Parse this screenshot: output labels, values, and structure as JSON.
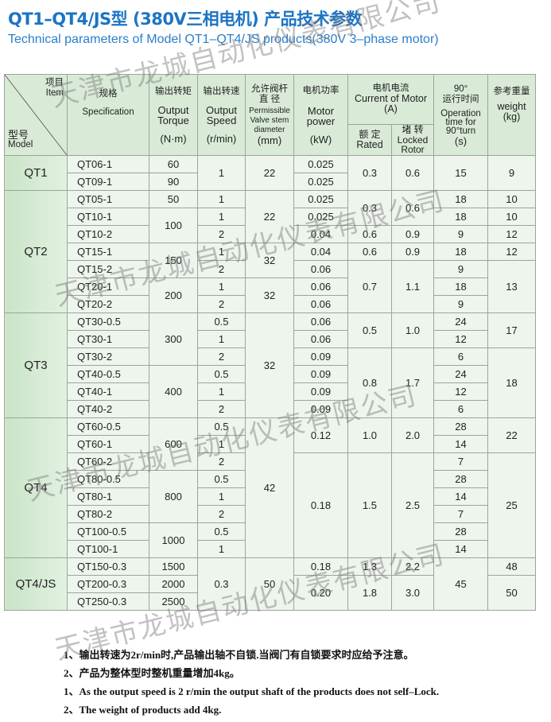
{
  "title_cn": "QT1–QT4/JS型 (380V三相电机) 产品技术参数",
  "title_en": "Technical parameters of Model QT1–QT4/JS products(380V 3–phase motor)",
  "watermark": "天津市龙城自动化仪表有限公司",
  "header": {
    "item_cn": "项目",
    "item_en": "Item",
    "model_cn": "型号",
    "model_en": "Model",
    "spec_cn": "规格",
    "spec_en": "Specification",
    "torque_cn": "输出转矩",
    "torque_en": "Output Torque",
    "torque_unit": "(N·m)",
    "speed_cn": "输出转速",
    "speed_en": "Output Speed",
    "speed_unit": "(r/min)",
    "valve_cn": "允许阀杆直 径",
    "valve_en": "Permissible Valve stem diameter",
    "valve_unit": "(mm)",
    "power_cn": "电机功率",
    "power_en": "Motor power",
    "power_unit": "(kW)",
    "current_cn": "电机电流",
    "current_en": "Current of Motor",
    "current_unit": "(A)",
    "rated_cn": "额 定",
    "rated_en": "Rated",
    "locked_cn": "堵 转",
    "locked_en": "Locked Rotor",
    "time_top": "90°",
    "time_cn": "运行时间",
    "time_en": "Operation time for 90°turn",
    "time_unit": "(s)",
    "weight_cn": "参考重量",
    "weight_en": "weight",
    "weight_unit": "(kg)"
  },
  "groups": [
    {
      "model": "QT1",
      "rows": [
        [
          "QT06-1",
          "60",
          [
            "1",
            2
          ],
          [
            "22",
            2
          ],
          "0.025",
          [
            "0.3",
            2
          ],
          [
            "0.6",
            2
          ],
          [
            "15",
            2
          ],
          [
            "9",
            2
          ]
        ],
        [
          "QT09-1",
          "90",
          "0.025"
        ]
      ]
    },
    {
      "model": "QT2",
      "rows": [
        [
          "QT05-1",
          "50",
          "1",
          [
            "22",
            3
          ],
          "0.025",
          [
            "0.3",
            2
          ],
          [
            "0.6",
            2
          ],
          "18",
          "10"
        ],
        [
          "QT10-1",
          [
            "100",
            2
          ],
          "1",
          "0.025",
          "18",
          "10"
        ],
        [
          "QT10-2",
          "2",
          "0.04",
          "0.6",
          "0.9",
          "9",
          "12"
        ],
        [
          "QT15-1",
          [
            "150",
            2
          ],
          "1",
          [
            "32",
            2
          ],
          "0.04",
          "0.6",
          "0.9",
          "18",
          "12"
        ],
        [
          "QT15-2",
          "2",
          "0.06",
          [
            "0.7",
            3
          ],
          [
            "1.1",
            3
          ],
          "9",
          [
            "13",
            3
          ]
        ],
        [
          "QT20-1",
          [
            "200",
            2
          ],
          "1",
          [
            "32",
            2
          ],
          "0.06",
          "18"
        ],
        [
          "QT20-2",
          "2",
          "0.06",
          "9"
        ]
      ]
    },
    {
      "model": "QT3",
      "rows": [
        [
          "QT30-0.5",
          [
            "300",
            3
          ],
          "0.5",
          [
            "32",
            6
          ],
          "0.06",
          [
            "0.5",
            2
          ],
          [
            "1.0",
            2
          ],
          "24",
          [
            "17",
            2
          ]
        ],
        [
          "QT30-1",
          "1",
          "0.06",
          "12"
        ],
        [
          "QT30-2",
          "2",
          "0.09",
          [
            "0.8",
            4
          ],
          [
            "1.7",
            4
          ],
          "6",
          [
            "18",
            4
          ]
        ],
        [
          "QT40-0.5",
          [
            "400",
            3
          ],
          "0.5",
          "0.09",
          "24"
        ],
        [
          "QT40-1",
          "1",
          "0.09",
          "12"
        ],
        [
          "QT40-2",
          "2",
          "0.09",
          "6"
        ]
      ]
    },
    {
      "model": "QT4",
      "rows": [
        [
          "QT60-0.5",
          [
            "600",
            3
          ],
          "0.5",
          [
            "42",
            8
          ],
          [
            "0.12",
            2
          ],
          [
            "1.0",
            2
          ],
          [
            "2.0",
            2
          ],
          "28",
          [
            "22",
            2
          ]
        ],
        [
          "QT60-1",
          "1",
          "14"
        ],
        [
          "QT60-2",
          "2",
          [
            "0.18",
            6
          ],
          [
            "1.5",
            6
          ],
          [
            "2.5",
            6
          ],
          "7",
          [
            "25",
            6
          ]
        ],
        [
          "QT80-0.5",
          [
            "800",
            3
          ],
          "0.5",
          "28"
        ],
        [
          "QT80-1",
          "1",
          "14"
        ],
        [
          "QT80-2",
          "2",
          "7"
        ],
        [
          "QT100-0.5",
          [
            "1000",
            2
          ],
          "0.5",
          "28"
        ],
        [
          "QT100-1",
          "1",
          "14"
        ]
      ]
    },
    {
      "model": "QT4/JS",
      "rows": [
        [
          "QT150-0.3",
          "1500",
          [
            "0.3",
            3
          ],
          [
            "50",
            3
          ],
          "0.18",
          "1.3",
          "2.2",
          [
            "45",
            3
          ],
          "48"
        ],
        [
          "QT200-0.3",
          "2000",
          [
            "0.20",
            2
          ],
          [
            "1.8",
            2
          ],
          [
            "3.0",
            2
          ],
          [
            "50",
            2
          ]
        ],
        [
          "QT250-0.3",
          "2500"
        ]
      ]
    }
  ],
  "notes": [
    "1、输出转速为2r/min时,产品输出轴不自锁.当阀门有自锁要求时应给予注意。",
    "2、产品为整体型时整机重量增加4kg。",
    "1、As the output speed is 2 r/min the output shaft of the products does not  self–Lock.",
    "2、The weight of products add 4kg."
  ]
}
